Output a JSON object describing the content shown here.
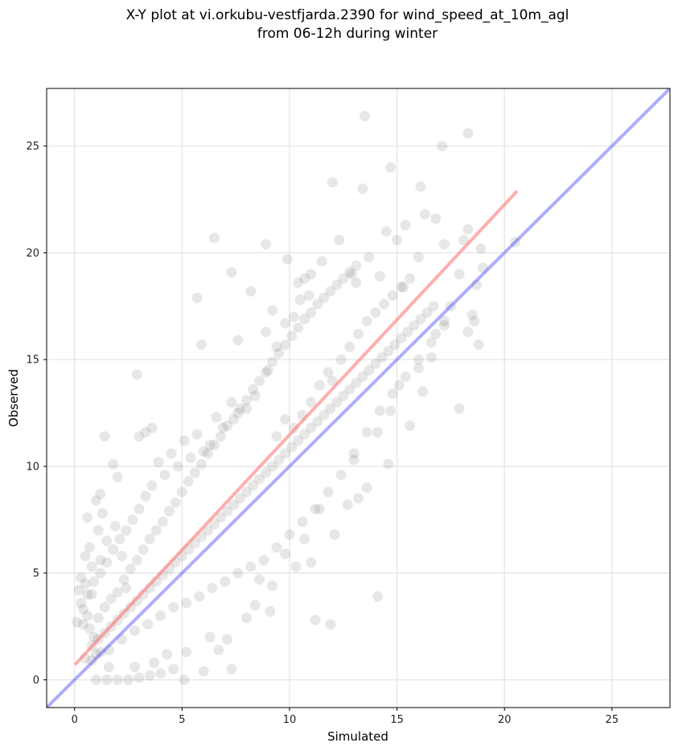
{
  "chart_data": {
    "type": "scatter",
    "title": "X-Y plot at vi.orkubu-vestfjarda.2390 for wind_speed_at_10m_agl",
    "subtitle": "from 06-12h during winter",
    "xlabel": "Simulated",
    "ylabel": "Observed",
    "xlim": [
      -1.3,
      27.7
    ],
    "ylim": [
      -1.3,
      27.7
    ],
    "xticks": [
      0,
      5,
      10,
      15,
      20,
      25
    ],
    "yticks": [
      0,
      5,
      10,
      15,
      20,
      25
    ],
    "grid": true,
    "legend": "none",
    "point_color": "#444444",
    "identity_line": {
      "color": "#4a4aff",
      "from": [
        -1.3,
        -1.3
      ],
      "to": [
        27.7,
        27.7
      ]
    },
    "fit_line": {
      "color": "#ff6b6b",
      "from": [
        0.05,
        0.75
      ],
      "to": [
        20.55,
        22.85
      ]
    },
    "points_note_count": 1500,
    "points": [
      [
        0.1,
        2.7
      ],
      [
        0.2,
        4.2
      ],
      [
        0.3,
        4.8
      ],
      [
        0.3,
        3.6
      ],
      [
        0.4,
        2.6
      ],
      [
        0.5,
        4.5
      ],
      [
        0.5,
        5.8
      ],
      [
        0.6,
        3.0
      ],
      [
        0.6,
        7.6
      ],
      [
        0.7,
        6.2
      ],
      [
        0.8,
        4.0
      ],
      [
        0.8,
        5.3
      ],
      [
        0.9,
        2.0
      ],
      [
        1.0,
        8.4
      ],
      [
        1.1,
        7.0
      ],
      [
        1.2,
        5.6
      ],
      [
        1.2,
        8.7
      ],
      [
        1.3,
        7.8
      ],
      [
        1.4,
        11.4
      ],
      [
        1.5,
        6.5
      ],
      [
        1.6,
        0.6
      ],
      [
        1.8,
        10.1
      ],
      [
        1.9,
        7.2
      ],
      [
        2.0,
        9.5
      ],
      [
        2.2,
        5.8
      ],
      [
        2.4,
        4.3
      ],
      [
        2.9,
        14.3
      ],
      [
        3.0,
        11.4
      ],
      [
        3.3,
        11.6
      ],
      [
        3.6,
        11.8
      ],
      [
        1.0,
        0.0
      ],
      [
        1.5,
        0.0
      ],
      [
        2.0,
        0.0
      ],
      [
        2.5,
        0.0
      ],
      [
        3.0,
        0.1
      ],
      [
        3.5,
        0.2
      ],
      [
        4.0,
        0.3
      ],
      [
        4.6,
        0.5
      ],
      [
        5.1,
        0.0
      ],
      [
        6.0,
        0.4
      ],
      [
        7.3,
        0.5
      ],
      [
        0.8,
        0.9
      ],
      [
        1.2,
        1.3
      ],
      [
        2.8,
        0.6
      ],
      [
        3.7,
        0.8
      ],
      [
        4.3,
        1.2
      ],
      [
        5.2,
        1.3
      ],
      [
        6.7,
        1.4
      ],
      [
        7.1,
        1.9
      ],
      [
        6.3,
        2.0
      ],
      [
        8.0,
        2.9
      ],
      [
        8.4,
        3.5
      ],
      [
        9.1,
        3.2
      ],
      [
        8.6,
        4.7
      ],
      [
        9.2,
        4.4
      ],
      [
        9.8,
        5.9
      ],
      [
        10.3,
        5.3
      ],
      [
        10.7,
        6.6
      ],
      [
        11.0,
        5.5
      ],
      [
        11.2,
        2.8
      ],
      [
        11.9,
        2.6
      ],
      [
        12.1,
        6.8
      ],
      [
        11.4,
        8.0
      ],
      [
        12.7,
        8.2
      ],
      [
        13.2,
        8.5
      ],
      [
        13.6,
        9.0
      ],
      [
        13.0,
        10.3
      ],
      [
        14.1,
        3.9
      ],
      [
        14.6,
        10.1
      ],
      [
        14.1,
        11.6
      ],
      [
        14.7,
        12.6
      ],
      [
        15.1,
        13.8
      ],
      [
        15.6,
        11.9
      ],
      [
        16.2,
        13.5
      ],
      [
        16.0,
        14.6
      ],
      [
        16.6,
        15.1
      ],
      [
        16.8,
        16.2
      ],
      [
        17.2,
        16.8
      ],
      [
        17.5,
        17.5
      ],
      [
        17.9,
        12.7
      ],
      [
        18.3,
        16.3
      ],
      [
        18.5,
        17.1
      ],
      [
        18.7,
        18.5
      ],
      [
        19.0,
        19.3
      ],
      [
        18.9,
        20.2
      ],
      [
        18.3,
        21.1
      ],
      [
        17.9,
        19.0
      ],
      [
        17.2,
        20.4
      ],
      [
        16.8,
        21.6
      ],
      [
        16.3,
        21.8
      ],
      [
        16.1,
        23.1
      ],
      [
        15.4,
        21.3
      ],
      [
        15.0,
        20.6
      ],
      [
        14.5,
        21.0
      ],
      [
        14.7,
        24.0
      ],
      [
        13.4,
        23.0
      ],
      [
        13.5,
        26.4
      ],
      [
        12.3,
        20.6
      ],
      [
        12.0,
        23.3
      ],
      [
        11.5,
        19.6
      ],
      [
        12.9,
        19.0
      ],
      [
        13.7,
        19.8
      ],
      [
        13.1,
        18.6
      ],
      [
        14.2,
        18.9
      ],
      [
        15.3,
        18.4
      ],
      [
        16.0,
        19.8
      ],
      [
        17.1,
        25.0
      ],
      [
        18.3,
        25.6
      ],
      [
        18.1,
        20.6
      ],
      [
        18.6,
        16.8
      ],
      [
        18.8,
        15.7
      ],
      [
        20.5,
        20.5
      ],
      [
        6.5,
        20.7
      ],
      [
        7.3,
        19.1
      ],
      [
        8.9,
        20.4
      ],
      [
        9.9,
        19.7
      ],
      [
        8.2,
        18.2
      ],
      [
        5.7,
        17.9
      ],
      [
        5.9,
        15.7
      ],
      [
        7.6,
        15.9
      ],
      [
        8.9,
        16.3
      ],
      [
        9.2,
        17.3
      ],
      [
        10.2,
        17.0
      ],
      [
        10.5,
        17.8
      ],
      [
        10.9,
        18.0
      ],
      [
        10.7,
        18.8
      ],
      [
        11.0,
        19.0
      ],
      [
        10.4,
        18.6
      ],
      [
        9.8,
        16.7
      ],
      [
        9.4,
        15.6
      ],
      [
        9.0,
        14.5
      ],
      [
        8.4,
        13.3
      ],
      [
        8.0,
        12.7
      ],
      [
        7.6,
        12.5
      ],
      [
        7.3,
        13.0
      ],
      [
        6.9,
        11.8
      ],
      [
        6.6,
        12.3
      ],
      [
        6.3,
        11.0
      ],
      [
        6.0,
        10.7
      ],
      [
        5.7,
        11.5
      ],
      [
        5.4,
        10.4
      ],
      [
        5.1,
        11.2
      ],
      [
        4.8,
        10.0
      ],
      [
        4.5,
        10.6
      ],
      [
        4.2,
        9.6
      ],
      [
        3.9,
        10.2
      ],
      [
        3.6,
        9.1
      ],
      [
        3.3,
        8.6
      ],
      [
        3.0,
        8.0
      ],
      [
        2.7,
        7.5
      ],
      [
        2.4,
        7.0
      ],
      [
        2.1,
        6.6
      ],
      [
        1.8,
        6.1
      ],
      [
        1.5,
        5.5
      ],
      [
        1.2,
        5.0
      ],
      [
        0.9,
        4.6
      ],
      [
        0.6,
        4.0
      ],
      [
        0.4,
        3.3
      ],
      [
        0.7,
        2.4
      ],
      [
        1.1,
        2.9
      ],
      [
        1.4,
        3.4
      ],
      [
        1.7,
        3.8
      ],
      [
        2.0,
        4.1
      ],
      [
        2.3,
        4.7
      ],
      [
        2.6,
        5.2
      ],
      [
        2.9,
        5.6
      ],
      [
        3.2,
        6.1
      ],
      [
        3.5,
        6.6
      ],
      [
        3.8,
        7.0
      ],
      [
        4.1,
        7.4
      ],
      [
        4.4,
        7.9
      ],
      [
        4.7,
        8.3
      ],
      [
        5.0,
        8.8
      ],
      [
        5.3,
        9.3
      ],
      [
        5.6,
        9.7
      ],
      [
        5.9,
        10.1
      ],
      [
        6.2,
        10.6
      ],
      [
        6.5,
        11.0
      ],
      [
        6.8,
        11.4
      ],
      [
        7.1,
        11.9
      ],
      [
        7.4,
        12.2
      ],
      [
        7.7,
        12.7
      ],
      [
        8.0,
        13.1
      ],
      [
        8.3,
        13.6
      ],
      [
        8.6,
        14.0
      ],
      [
        8.9,
        14.4
      ],
      [
        9.2,
        14.9
      ],
      [
        9.5,
        15.3
      ],
      [
        9.8,
        15.7
      ],
      [
        10.1,
        16.1
      ],
      [
        10.4,
        16.5
      ],
      [
        10.7,
        16.9
      ],
      [
        11.0,
        17.2
      ],
      [
        11.3,
        17.6
      ],
      [
        11.6,
        17.9
      ],
      [
        11.9,
        18.2
      ],
      [
        12.2,
        18.5
      ],
      [
        12.5,
        18.8
      ],
      [
        12.8,
        19.1
      ],
      [
        13.1,
        19.4
      ],
      [
        0.5,
        1.0
      ],
      [
        0.8,
        1.6
      ],
      [
        1.1,
        1.9
      ],
      [
        1.4,
        2.2
      ],
      [
        1.7,
        2.5
      ],
      [
        2.0,
        2.8
      ],
      [
        2.3,
        3.1
      ],
      [
        2.6,
        3.4
      ],
      [
        2.9,
        3.7
      ],
      [
        3.2,
        4.0
      ],
      [
        3.5,
        4.3
      ],
      [
        3.8,
        4.6
      ],
      [
        4.1,
        4.9
      ],
      [
        4.4,
        5.2
      ],
      [
        4.7,
        5.5
      ],
      [
        5.0,
        5.8
      ],
      [
        5.3,
        6.1
      ],
      [
        5.6,
        6.4
      ],
      [
        5.9,
        6.7
      ],
      [
        6.2,
        7.0
      ],
      [
        6.5,
        7.3
      ],
      [
        6.8,
        7.6
      ],
      [
        7.1,
        7.9
      ],
      [
        7.4,
        8.2
      ],
      [
        7.7,
        8.5
      ],
      [
        8.0,
        8.8
      ],
      [
        8.3,
        9.1
      ],
      [
        8.6,
        9.4
      ],
      [
        8.9,
        9.7
      ],
      [
        9.2,
        10.0
      ],
      [
        9.5,
        10.3
      ],
      [
        9.8,
        10.6
      ],
      [
        10.1,
        10.9
      ],
      [
        10.4,
        11.2
      ],
      [
        10.7,
        11.5
      ],
      [
        11.0,
        11.8
      ],
      [
        11.3,
        12.1
      ],
      [
        11.6,
        12.4
      ],
      [
        11.9,
        12.7
      ],
      [
        12.2,
        13.0
      ],
      [
        12.5,
        13.3
      ],
      [
        12.8,
        13.6
      ],
      [
        13.1,
        13.9
      ],
      [
        13.4,
        14.2
      ],
      [
        13.7,
        14.5
      ],
      [
        14.0,
        14.8
      ],
      [
        14.3,
        15.1
      ],
      [
        14.6,
        15.4
      ],
      [
        14.9,
        15.7
      ],
      [
        15.2,
        16.0
      ],
      [
        15.5,
        16.3
      ],
      [
        15.8,
        16.6
      ],
      [
        16.1,
        16.9
      ],
      [
        16.4,
        17.2
      ],
      [
        16.7,
        17.5
      ],
      [
        1.0,
        1.2
      ],
      [
        1.6,
        1.4
      ],
      [
        2.2,
        1.9
      ],
      [
        2.8,
        2.3
      ],
      [
        3.4,
        2.6
      ],
      [
        4.0,
        3.0
      ],
      [
        4.6,
        3.4
      ],
      [
        5.2,
        3.6
      ],
      [
        5.8,
        3.9
      ],
      [
        6.4,
        4.3
      ],
      [
        7.0,
        4.6
      ],
      [
        7.6,
        5.0
      ],
      [
        8.2,
        5.3
      ],
      [
        8.8,
        5.6
      ],
      [
        9.4,
        6.2
      ],
      [
        10.0,
        6.8
      ],
      [
        10.6,
        7.4
      ],
      [
        11.2,
        8.0
      ],
      [
        11.8,
        8.8
      ],
      [
        12.4,
        9.6
      ],
      [
        13.0,
        10.6
      ],
      [
        13.6,
        11.6
      ],
      [
        14.2,
        12.6
      ],
      [
        14.8,
        13.4
      ],
      [
        15.4,
        14.2
      ],
      [
        16.0,
        15.0
      ],
      [
        16.6,
        15.8
      ],
      [
        17.2,
        16.6
      ],
      [
        12.0,
        14.0
      ],
      [
        12.4,
        15.0
      ],
      [
        12.8,
        15.6
      ],
      [
        13.2,
        16.2
      ],
      [
        13.6,
        16.8
      ],
      [
        14.0,
        17.2
      ],
      [
        14.4,
        17.6
      ],
      [
        14.8,
        18.0
      ],
      [
        15.2,
        18.4
      ],
      [
        15.6,
        18.8
      ],
      [
        11.0,
        13.0
      ],
      [
        11.4,
        13.8
      ],
      [
        11.8,
        14.4
      ],
      [
        10.6,
        12.4
      ],
      [
        10.2,
        11.8
      ],
      [
        9.8,
        12.2
      ],
      [
        9.4,
        11.4
      ]
    ]
  }
}
